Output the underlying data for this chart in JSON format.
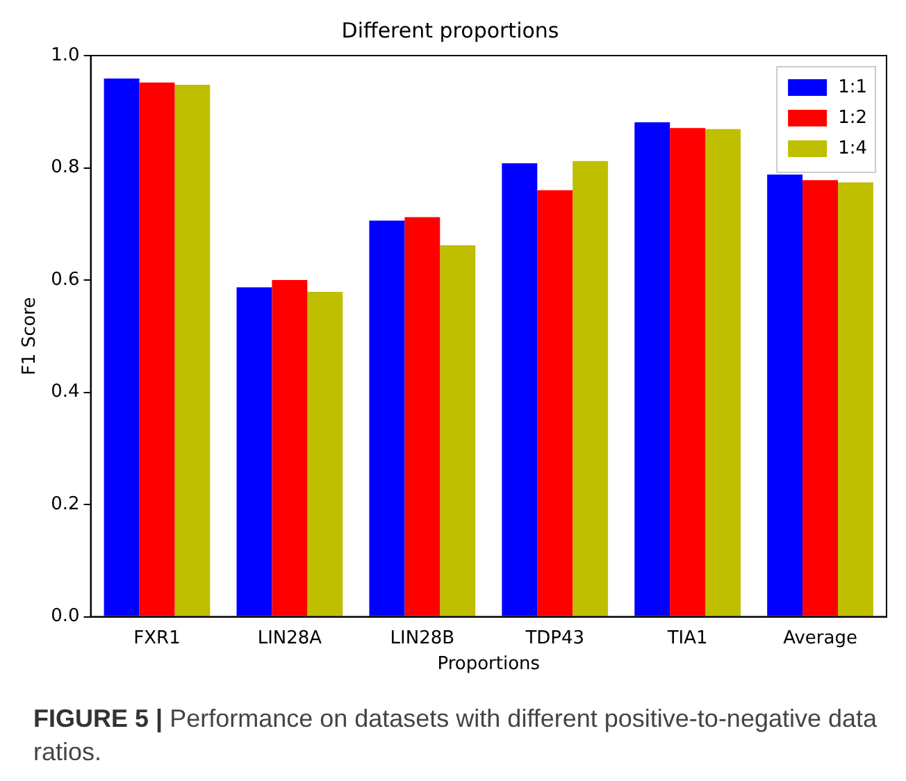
{
  "chart_data": {
    "type": "bar",
    "title": "Different proportions",
    "xlabel": "Proportions",
    "ylabel": "F1 Score",
    "categories": [
      "FXR1",
      "LIN28A",
      "LIN28B",
      "TDP43",
      "TIA1",
      "Average"
    ],
    "series": [
      {
        "name": "1:1",
        "color": "#0000ff",
        "values": [
          0.959,
          0.587,
          0.706,
          0.808,
          0.881,
          0.788
        ]
      },
      {
        "name": "1:2",
        "color": "#ff0000",
        "values": [
          0.952,
          0.6,
          0.712,
          0.76,
          0.871,
          0.778
        ]
      },
      {
        "name": "1:4",
        "color": "#bfbf00",
        "values": [
          0.948,
          0.579,
          0.662,
          0.812,
          0.869,
          0.774
        ]
      }
    ],
    "ylim": [
      0,
      1.0
    ],
    "yticks": [
      {
        "value": 0,
        "label": "0.0"
      },
      {
        "value": 0.2,
        "label": "0.2"
      },
      {
        "value": 0.4,
        "label": "0.4"
      },
      {
        "value": 0.6,
        "label": "0.6"
      },
      {
        "value": 0.8,
        "label": "0.8"
      },
      {
        "value": 1.0,
        "label": "1.0"
      }
    ],
    "grid": false,
    "legend": "top right",
    "annotations": [
      "FIGURE 5 | Performance on datasets with different positive-to-negative data ratios."
    ]
  }
}
